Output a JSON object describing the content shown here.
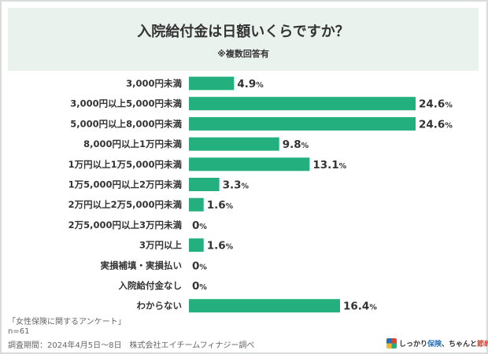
{
  "header": {
    "title": "入院給付金は日額いくらですか？",
    "subtitle": "※複数回答有"
  },
  "colors": {
    "bar": "#24b07e",
    "header_bg": "#eaf2ee"
  },
  "chart_data": {
    "type": "bar",
    "orientation": "horizontal",
    "title": "入院給付金は日額いくらですか？",
    "subtitle": "※複数回答有",
    "unit": "%",
    "xlim": [
      0,
      24.6
    ],
    "grid": false,
    "categories": [
      "3,000円未満",
      "3,000円以上5,000円未満",
      "5,000円以上8,000円未満",
      "8,000円以上1万円未満",
      "1万円以上1万5,000円未満",
      "1万5,000円以上2万円未満",
      "2万円以上2万5,000円未満",
      "2万5,000円以上3万円未満",
      "3万円以上",
      "実損補填・実損払い",
      "入院給付金なし",
      "わからない"
    ],
    "values": [
      4.9,
      24.6,
      24.6,
      9.8,
      13.1,
      3.3,
      1.6,
      0,
      1.6,
      0,
      0,
      16.4
    ],
    "value_labels": [
      "4.9",
      "24.6",
      "24.6",
      "9.8",
      "13.1",
      "3.3",
      "1.6",
      "0",
      "1.6",
      "0",
      "0",
      "16.4"
    ]
  },
  "footer": {
    "survey": "「女性保険に関するアンケート」",
    "n": "n=61",
    "period": "調査期間：2024年4月5日～8日　株式会社エイチームフィナジー調べ"
  },
  "logo": {
    "icon": "logo-mark-icon",
    "text_pre": "しっかり",
    "text_accent": "保険",
    "text_mid": "、ちゃんと",
    "text_accent2": "節約",
    "text_post": "。"
  }
}
